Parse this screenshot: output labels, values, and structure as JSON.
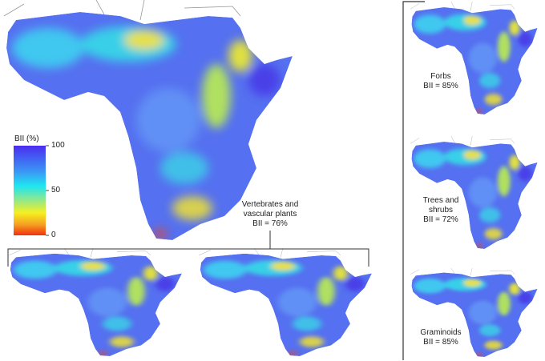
{
  "legend": {
    "title": "BII (%)",
    "ticks": [
      "100",
      "50",
      "0"
    ],
    "colors": [
      "#4b2cf0",
      "#1ee6f0",
      "#f5f020",
      "#f03010"
    ]
  },
  "main_map": {
    "label_line1": "Vertebrates and",
    "label_line2": "vascular plants",
    "bii": "BII = 76%"
  },
  "side_maps": [
    {
      "name": "Forbs",
      "bii": "BII = 85%"
    },
    {
      "name_line1": "Trees and",
      "name_line2": "shrubs",
      "bii": "BII = 72%"
    },
    {
      "name": "Graminoids",
      "bii": "BII = 85%"
    }
  ]
}
